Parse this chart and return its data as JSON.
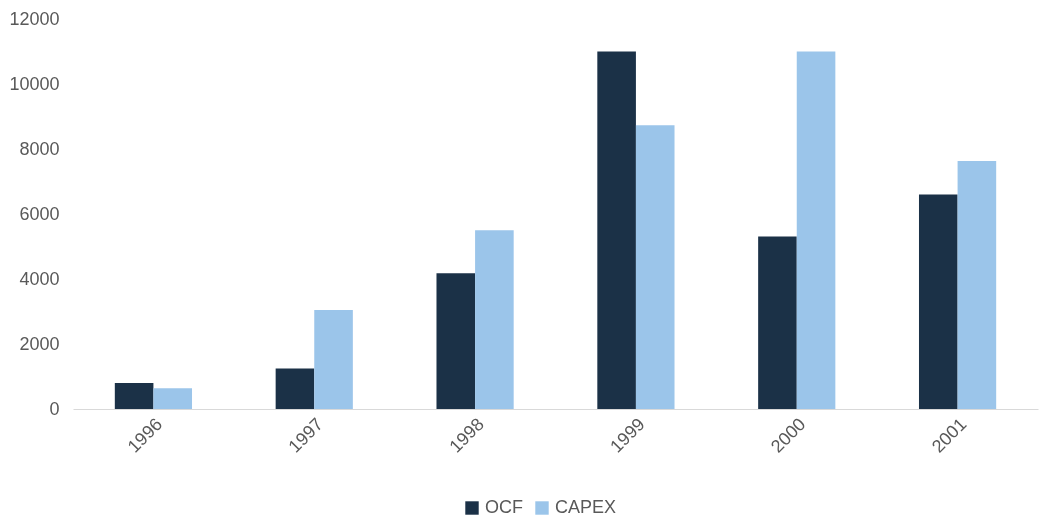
{
  "chart_data": {
    "type": "bar",
    "categories": [
      "1996",
      "1997",
      "1998",
      "1999",
      "2000",
      "2001"
    ],
    "series": [
      {
        "name": "OCF",
        "color": "#1b3147",
        "values": [
          800,
          1250,
          4180,
          11000,
          5310,
          6600
        ]
      },
      {
        "name": "CAPEX",
        "color": "#9bc5ea",
        "values": [
          640,
          3050,
          5500,
          8730,
          11000,
          7630
        ]
      }
    ],
    "ylim": [
      0,
      12000
    ],
    "yticks": [
      0,
      2000,
      4000,
      6000,
      8000,
      10000,
      12000
    ],
    "grid": false,
    "legend": "bottom"
  }
}
